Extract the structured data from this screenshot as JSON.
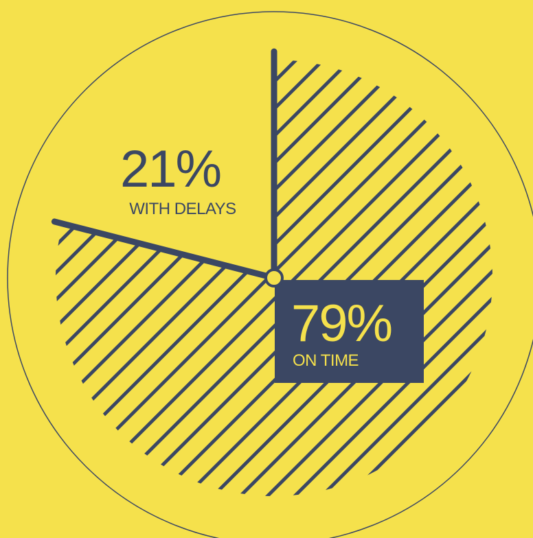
{
  "colors": {
    "background": "#F5E14C",
    "ink": "#3B4763",
    "label_box": "#3B4763",
    "label_box_text": "#F5E14C"
  },
  "chart_data": {
    "type": "pie",
    "slices": [
      {
        "value": 79,
        "percent_label": "79%",
        "label": "ON TIME",
        "pattern": "diagonal-hatch",
        "highlighted": true
      },
      {
        "value": 21,
        "percent_label": "21%",
        "label": "WITH DELAYS",
        "pattern": "none",
        "highlighted": false
      }
    ],
    "title": "",
    "legend": "none",
    "grid": false
  }
}
